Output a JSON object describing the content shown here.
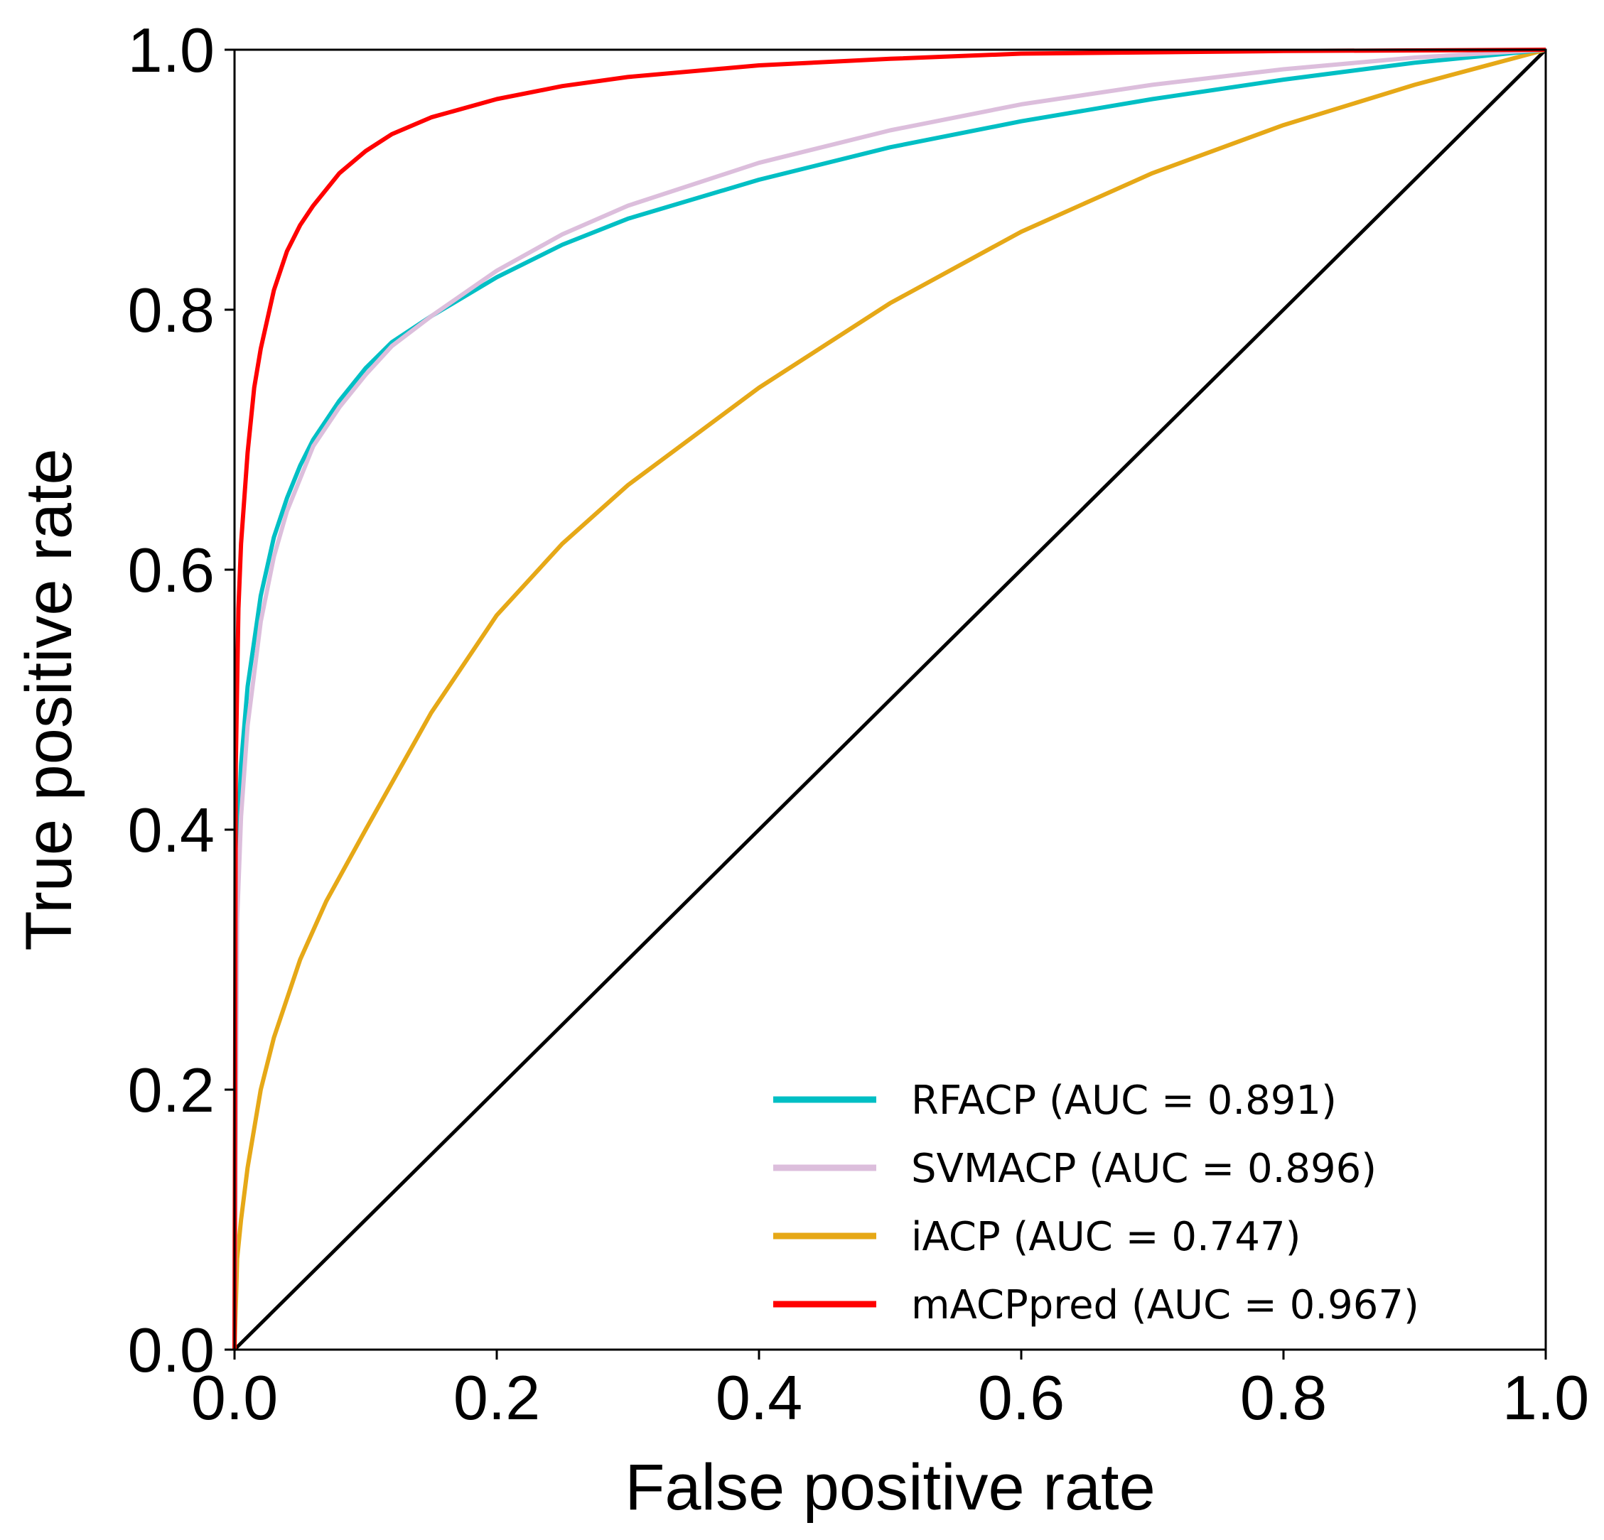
{
  "chart_data": {
    "type": "line",
    "title": "",
    "xlabel": "False positive rate",
    "ylabel": "True positive rate",
    "xlim": [
      0.0,
      1.0
    ],
    "ylim": [
      0.0,
      1.0
    ],
    "xticks": [
      "0.0",
      "0.2",
      "0.4",
      "0.6",
      "0.8",
      "1.0"
    ],
    "yticks": [
      "0.0",
      "0.2",
      "0.4",
      "0.6",
      "0.8",
      "1.0"
    ],
    "grid": false,
    "legend_position": "bottom-right",
    "series": [
      {
        "name": "RFACP  (AUC = 0.891)",
        "color": "#00BFC4",
        "x": [
          0,
          0.002,
          0.005,
          0.01,
          0.02,
          0.03,
          0.04,
          0.05,
          0.06,
          0.08,
          0.1,
          0.12,
          0.15,
          0.2,
          0.25,
          0.3,
          0.4,
          0.5,
          0.6,
          0.7,
          0.8,
          0.9,
          1.0
        ],
        "y": [
          0,
          0.38,
          0.45,
          0.51,
          0.58,
          0.625,
          0.655,
          0.68,
          0.7,
          0.73,
          0.755,
          0.775,
          0.795,
          0.825,
          0.85,
          0.87,
          0.9,
          0.925,
          0.945,
          0.962,
          0.977,
          0.99,
          1.0
        ]
      },
      {
        "name": "SVMACP (AUC = 0.896)",
        "color": "#DCBEDC",
        "x": [
          0,
          0.002,
          0.005,
          0.01,
          0.02,
          0.03,
          0.04,
          0.05,
          0.06,
          0.08,
          0.1,
          0.12,
          0.15,
          0.2,
          0.25,
          0.3,
          0.4,
          0.5,
          0.6,
          0.7,
          0.8,
          0.9,
          1.0
        ],
        "y": [
          0,
          0.33,
          0.41,
          0.48,
          0.56,
          0.61,
          0.645,
          0.67,
          0.695,
          0.725,
          0.75,
          0.772,
          0.795,
          0.83,
          0.858,
          0.88,
          0.913,
          0.938,
          0.958,
          0.973,
          0.985,
          0.994,
          1.0
        ]
      },
      {
        "name": "iACP  (AUC = 0.747)",
        "color": "#E6A817",
        "x": [
          0,
          0.002,
          0.005,
          0.01,
          0.02,
          0.03,
          0.05,
          0.07,
          0.1,
          0.15,
          0.2,
          0.25,
          0.3,
          0.4,
          0.5,
          0.6,
          0.7,
          0.8,
          0.9,
          1.0
        ],
        "y": [
          0,
          0.07,
          0.1,
          0.14,
          0.2,
          0.24,
          0.3,
          0.345,
          0.4,
          0.49,
          0.565,
          0.62,
          0.665,
          0.74,
          0.805,
          0.86,
          0.905,
          0.942,
          0.973,
          1.0
        ]
      },
      {
        "name": "mACPpred  (AUC = 0.967)",
        "color": "#FF0000",
        "x": [
          0,
          0.001,
          0.003,
          0.005,
          0.01,
          0.015,
          0.02,
          0.03,
          0.04,
          0.05,
          0.06,
          0.08,
          0.1,
          0.12,
          0.15,
          0.2,
          0.25,
          0.3,
          0.4,
          0.5,
          0.6,
          0.8,
          1.0
        ],
        "y": [
          0,
          0.45,
          0.57,
          0.62,
          0.69,
          0.74,
          0.77,
          0.815,
          0.845,
          0.865,
          0.88,
          0.905,
          0.922,
          0.935,
          0.948,
          0.962,
          0.972,
          0.979,
          0.988,
          0.993,
          0.997,
          0.999,
          1.0
        ]
      },
      {
        "name": "diagonal",
        "color": "#000000",
        "x": [
          0,
          1
        ],
        "y": [
          0,
          1
        ]
      }
    ]
  }
}
